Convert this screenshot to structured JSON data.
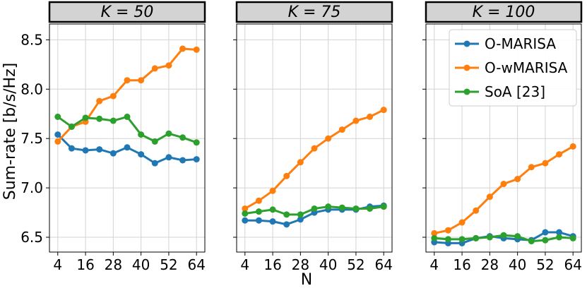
{
  "chart_data": {
    "type": "line",
    "ylabel": "Sum-rate [b/s/Hz]",
    "xlabel": "N",
    "x": [
      4,
      10,
      16,
      22,
      28,
      34,
      40,
      46,
      52,
      58,
      64
    ],
    "xticks": [
      4,
      16,
      28,
      40,
      52,
      64
    ],
    "yticks": [
      6.5,
      7.0,
      7.5,
      8.0,
      8.5
    ],
    "ytick_labels": [
      "6.5",
      "7.0",
      "7.5",
      "8.0",
      "8.5"
    ],
    "xlim": [
      0.4,
      67.6
    ],
    "ylim": [
      6.35,
      8.66
    ],
    "grid": true,
    "legend_position": "top-right of K=100 panel",
    "colors": {
      "O-MARISA": "#1f77b4",
      "O-wMARISA": "#ff7f0e",
      "SoA [23]": "#2ca02c"
    },
    "legend": [
      "O-MARISA",
      "O-wMARISA",
      "SoA [23]"
    ],
    "panels": [
      {
        "strip": "K = 50",
        "series": [
          {
            "name": "O-MARISA",
            "values": [
              7.54,
              7.4,
              7.38,
              7.39,
              7.35,
              7.41,
              7.34,
              7.25,
              7.31,
              7.28,
              7.29
            ]
          },
          {
            "name": "O-wMARISA",
            "values": [
              7.47,
              7.62,
              7.67,
              7.88,
              7.93,
              8.09,
              8.09,
              8.21,
              8.24,
              8.41,
              8.4
            ]
          },
          {
            "name": "SoA [23]",
            "values": [
              7.72,
              7.62,
              7.71,
              7.7,
              7.68,
              7.72,
              7.54,
              7.47,
              7.55,
              7.51,
              7.46
            ]
          }
        ]
      },
      {
        "strip": "K = 75",
        "series": [
          {
            "name": "O-MARISA",
            "values": [
              6.67,
              6.67,
              6.66,
              6.63,
              6.68,
              6.75,
              6.78,
              6.78,
              6.78,
              6.81,
              6.82
            ]
          },
          {
            "name": "O-wMARISA",
            "values": [
              6.79,
              6.87,
              6.97,
              7.12,
              7.26,
              7.4,
              7.5,
              7.59,
              7.68,
              7.72,
              7.79
            ]
          },
          {
            "name": "SoA [23]",
            "values": [
              6.74,
              6.76,
              6.78,
              6.73,
              6.73,
              6.79,
              6.81,
              6.8,
              6.79,
              6.79,
              6.81
            ]
          }
        ]
      },
      {
        "strip": "K = 100",
        "series": [
          {
            "name": "O-MARISA",
            "values": [
              6.45,
              6.44,
              6.44,
              6.49,
              6.51,
              6.49,
              6.48,
              6.47,
              6.55,
              6.55,
              6.51
            ]
          },
          {
            "name": "O-wMARISA",
            "values": [
              6.54,
              6.57,
              6.65,
              6.77,
              6.91,
              7.04,
              7.09,
              7.21,
              7.25,
              7.34,
              7.42
            ]
          },
          {
            "name": "SoA [23]",
            "values": [
              6.49,
              6.48,
              6.48,
              6.49,
              6.5,
              6.52,
              6.51,
              6.46,
              6.47,
              6.5,
              6.49
            ]
          }
        ]
      }
    ]
  }
}
